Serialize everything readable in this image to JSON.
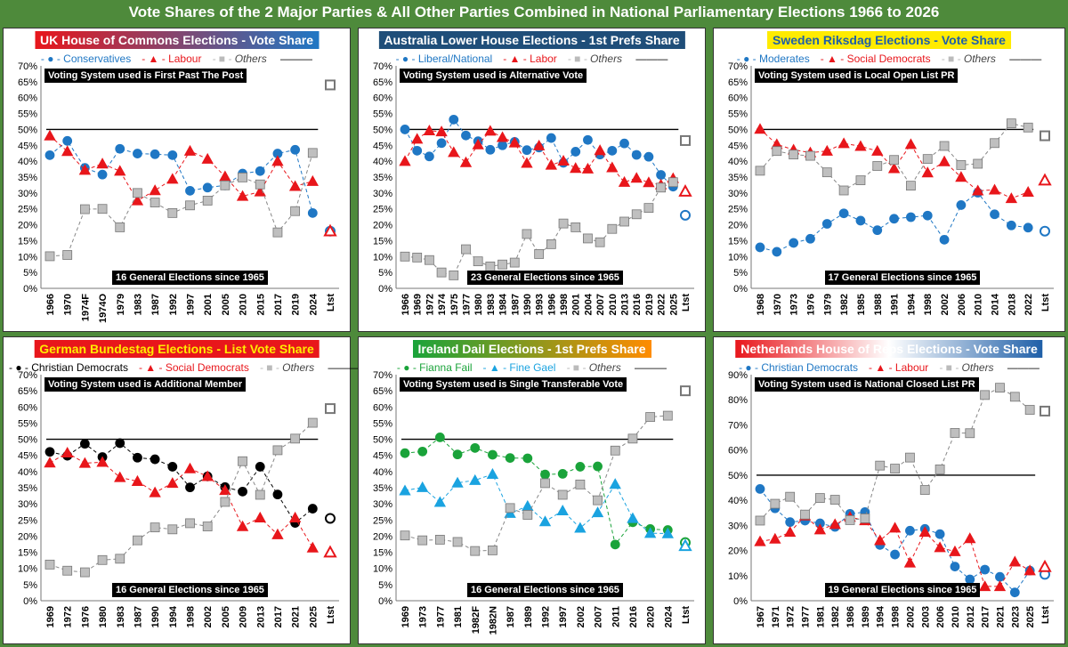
{
  "main_title": "Vote Shares of the 2 Major Parties & All Other Parties Combined in National Parliamentary Elections 1966 to 2026",
  "colors": {
    "blue": "#1f77c4",
    "red": "#e8161b",
    "grey": "#9a9a9a",
    "green": "#1aa33a",
    "lightblue": "#1aa3e0",
    "black": "#000000"
  },
  "chart_data": [
    {
      "type": "line",
      "title": "UK House of Commons Elections - Vote Share",
      "title_style": {
        "bg": "linear-gradient(90deg,#e8161b,#1f77c4)",
        "fg": "#ffffff"
      },
      "system_note": "Voting System used is First Past The Post",
      "count_note": "16 General Elections since 1965",
      "ylim": [
        0,
        70
      ],
      "categories": [
        "1966",
        "1970",
        "1974F",
        "1974O",
        "1979",
        "1983",
        "1987",
        "1992",
        "1997",
        "2001",
        "2005",
        "2010",
        "2015",
        "2017",
        "2019",
        "2024",
        "Ltst"
      ],
      "series": [
        {
          "name": "Conservatives",
          "color": "blue",
          "marker": "circle",
          "values": [
            41.9,
            46.4,
            37.9,
            35.8,
            43.9,
            42.4,
            42.2,
            41.9,
            30.7,
            31.7,
            32.4,
            36.1,
            36.9,
            42.4,
            43.6,
            23.7,
            18
          ]
        },
        {
          "name": "Labour",
          "color": "red",
          "marker": "triangle",
          "values": [
            48.0,
            43.1,
            37.2,
            39.2,
            36.9,
            27.6,
            30.8,
            34.4,
            43.2,
            40.7,
            35.2,
            29.0,
            30.4,
            40.0,
            32.1,
            33.7,
            18
          ]
        },
        {
          "name": "Others",
          "color": "grey",
          "marker": "square",
          "values": [
            10.1,
            10.5,
            24.9,
            25.0,
            19.2,
            30.0,
            27.0,
            23.7,
            26.1,
            27.6,
            32.4,
            34.9,
            32.7,
            17.6,
            24.3,
            42.6,
            64
          ]
        }
      ]
    },
    {
      "type": "line",
      "title": "Australia Lower House Elections - 1st Prefs Share",
      "title_style": {
        "bg": "#1f4e79",
        "fg": "#ffffff"
      },
      "system_note": "Voting System used is Alternative Vote",
      "count_note": "23 General Elections since 1965",
      "ylim": [
        0,
        70
      ],
      "categories": [
        "1966",
        "1969",
        "1972",
        "1974",
        "1975",
        "1977",
        "1980",
        "1983",
        "1984",
        "1987",
        "1990",
        "1993",
        "1996",
        "1998",
        "2001",
        "2004",
        "2007",
        "2010",
        "2013",
        "2016",
        "2019",
        "2022",
        "2025",
        "Ltst"
      ],
      "series": [
        {
          "name": "Liberal/National",
          "color": "blue",
          "marker": "circle",
          "values": [
            50.0,
            43.3,
            41.5,
            45.7,
            53.1,
            48.1,
            46.3,
            43.6,
            45.0,
            46.1,
            43.5,
            44.3,
            47.3,
            39.5,
            43.0,
            46.7,
            42.1,
            43.3,
            45.6,
            42.0,
            41.4,
            35.7,
            32.0,
            23
          ]
        },
        {
          "name": "Labor",
          "color": "red",
          "marker": "triangle",
          "values": [
            40.0,
            47.0,
            49.6,
            49.3,
            42.8,
            39.6,
            45.2,
            49.5,
            47.5,
            45.8,
            39.4,
            44.9,
            38.8,
            40.1,
            37.8,
            37.6,
            43.4,
            38.0,
            33.4,
            34.7,
            33.3,
            32.6,
            34.6,
            30.5
          ]
        },
        {
          "name": "Others",
          "color": "grey",
          "marker": "square",
          "values": [
            10.0,
            9.7,
            8.9,
            5.0,
            4.1,
            12.3,
            8.5,
            6.9,
            7.5,
            8.1,
            17.1,
            10.8,
            13.9,
            20.4,
            19.2,
            15.7,
            14.5,
            18.7,
            21.0,
            23.3,
            25.3,
            31.7,
            33.4,
            46.5
          ]
        }
      ]
    },
    {
      "type": "line",
      "title": "Sweden Riksdag Elections - Vote Share",
      "title_style": {
        "bg": "#ffeb00",
        "fg": "#1f5fa8"
      },
      "system_note": "Voting System used is Local Open List PR",
      "count_note": "17 General Elections since 1965",
      "ylim": [
        0,
        70
      ],
      "categories": [
        "1968",
        "1970",
        "1973",
        "1976",
        "1979",
        "1982",
        "1985",
        "1988",
        "1991",
        "1994",
        "1998",
        "2002",
        "2006",
        "2010",
        "2014",
        "2018",
        "2022",
        "Ltst"
      ],
      "series": [
        {
          "name": "Moderates",
          "color": "blue",
          "marker": "circle",
          "values": [
            12.9,
            11.5,
            14.3,
            15.6,
            20.3,
            23.6,
            21.3,
            18.3,
            21.9,
            22.4,
            22.9,
            15.3,
            26.2,
            30.1,
            23.3,
            19.8,
            19.1,
            18
          ]
        },
        {
          "name": "Social Democrats",
          "color": "red",
          "marker": "triangle",
          "values": [
            50.1,
            45.3,
            43.6,
            42.7,
            43.2,
            45.6,
            44.7,
            43.2,
            37.7,
            45.3,
            36.4,
            39.9,
            35.0,
            30.7,
            31.0,
            28.3,
            30.3,
            34
          ]
        },
        {
          "name": "Others",
          "color": "grey",
          "marker": "square",
          "values": [
            37.0,
            43.2,
            42.1,
            41.7,
            36.5,
            30.8,
            34.0,
            38.5,
            40.4,
            32.3,
            40.7,
            44.8,
            38.8,
            39.2,
            45.7,
            51.9,
            50.6,
            48
          ]
        }
      ]
    },
    {
      "type": "line",
      "title": "German Bundestag Elections - List Vote Share",
      "title_style": {
        "bg": "#e8161b",
        "fg": "#ffeb00"
      },
      "system_note": "Voting System used is Additional Member",
      "count_note": "16 General Elections since 1965",
      "ylim": [
        0,
        70
      ],
      "categories": [
        "1969",
        "1972",
        "1976",
        "1980",
        "1983",
        "1987",
        "1990",
        "1994",
        "1998",
        "2002",
        "2005",
        "2009",
        "2013",
        "2017",
        "2021",
        "2025",
        "Ltst"
      ],
      "series": [
        {
          "name": "Christian Democrats",
          "color": "black",
          "marker": "circle",
          "values": [
            46.1,
            44.9,
            48.6,
            44.5,
            48.8,
            44.3,
            43.8,
            41.5,
            35.1,
            38.5,
            35.2,
            33.8,
            41.5,
            32.9,
            24.1,
            28.5,
            25.5
          ]
        },
        {
          "name": "Social Democrats",
          "color": "red",
          "marker": "triangle",
          "values": [
            42.7,
            45.8,
            42.6,
            42.9,
            38.2,
            37.0,
            33.5,
            36.4,
            40.9,
            38.5,
            34.2,
            23.0,
            25.7,
            20.5,
            25.7,
            16.4,
            15
          ]
        },
        {
          "name": "Others",
          "color": "grey",
          "marker": "square",
          "values": [
            11.2,
            9.3,
            8.8,
            12.6,
            13.0,
            18.7,
            22.7,
            22.1,
            24.0,
            23.0,
            30.6,
            43.2,
            32.8,
            46.6,
            50.2,
            55.1,
            59.5
          ]
        }
      ]
    },
    {
      "type": "line",
      "title": "Ireland Dail Elections - 1st Prefs Share",
      "title_style": {
        "bg": "linear-gradient(90deg,#1aa33a,#ff8c00)",
        "fg": "#ffffff"
      },
      "system_note": "Voting System used is Single Transferable Vote",
      "count_note": "16 General Elections since 1965",
      "ylim": [
        0,
        70
      ],
      "categories": [
        "1969",
        "1973",
        "1977",
        "1981",
        "1982F",
        "1982N",
        "1987",
        "1989",
        "1992",
        "1997",
        "2002",
        "2007",
        "2011",
        "2016",
        "2020",
        "2024",
        "Ltst"
      ],
      "series": [
        {
          "name": "Fianna Fail",
          "color": "green",
          "marker": "circle",
          "values": [
            45.7,
            46.2,
            50.6,
            45.3,
            47.3,
            45.2,
            44.2,
            44.1,
            39.1,
            39.3,
            41.5,
            41.6,
            17.4,
            24.3,
            22.2,
            21.9,
            18
          ]
        },
        {
          "name": "Fine Gael",
          "color": "lightblue",
          "marker": "triangle",
          "values": [
            34.1,
            35.1,
            30.5,
            36.5,
            37.3,
            39.2,
            27.1,
            29.3,
            24.5,
            27.9,
            22.5,
            27.3,
            36.1,
            25.5,
            20.9,
            20.8,
            17
          ]
        },
        {
          "name": "Others",
          "color": "grey",
          "marker": "square",
          "values": [
            20.2,
            18.7,
            18.9,
            18.2,
            15.4,
            15.6,
            28.7,
            26.6,
            36.4,
            32.8,
            36.0,
            31.1,
            46.5,
            50.2,
            56.9,
            57.3,
            65
          ]
        }
      ]
    },
    {
      "type": "line",
      "title": "Netherlands House of Reps Elections - Vote Share",
      "title_style": {
        "bg": "linear-gradient(90deg,#e8161b,#ffffff,#1f5fa8)",
        "fg": "#ffffff"
      },
      "system_note": "Voting System used is National Closed List PR",
      "count_note": "19 General Elections since 1965",
      "ylim": [
        0,
        90
      ],
      "categories": [
        "1967",
        "1971",
        "1972",
        "1977",
        "1981",
        "1982",
        "1986",
        "1989",
        "1994",
        "1998",
        "2002",
        "2003",
        "2006",
        "2010",
        "2012",
        "2017",
        "2021",
        "2023",
        "2025",
        "Ltst"
      ],
      "series": [
        {
          "name": "Christian Democrats",
          "color": "blue",
          "marker": "circle",
          "values": [
            44.5,
            36.8,
            31.3,
            31.9,
            30.8,
            29.4,
            34.6,
            35.3,
            22.2,
            18.4,
            27.9,
            28.6,
            26.5,
            13.6,
            8.5,
            12.4,
            9.5,
            3.3,
            12,
            10.5
          ]
        },
        {
          "name": "Labour",
          "color": "red",
          "marker": "triangle",
          "values": [
            23.6,
            24.6,
            27.3,
            33.8,
            28.3,
            30.4,
            33.3,
            31.9,
            24.0,
            29.0,
            15.1,
            27.3,
            21.2,
            19.6,
            24.8,
            5.7,
            5.7,
            15.5,
            12,
            13.5
          ]
        },
        {
          "name": "Others",
          "color": "grey",
          "marker": "square",
          "values": [
            31.9,
            38.6,
            41.4,
            34.3,
            40.9,
            40.2,
            32.1,
            32.8,
            53.8,
            52.6,
            57.0,
            44.1,
            52.3,
            66.8,
            66.7,
            81.9,
            84.8,
            81.2,
            76,
            75.5
          ]
        }
      ]
    }
  ]
}
